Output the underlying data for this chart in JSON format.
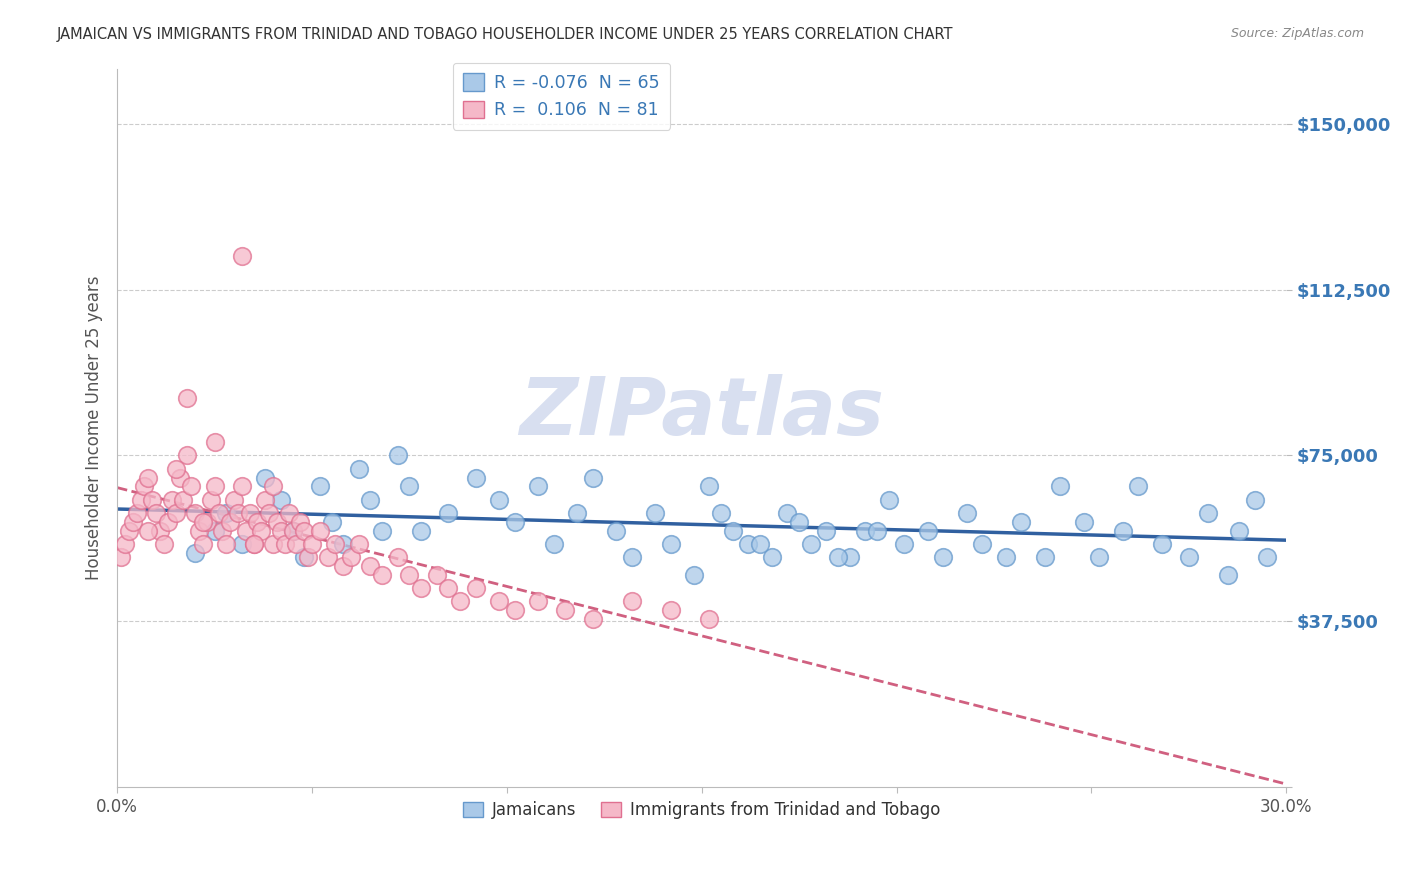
{
  "title": "JAMAICAN VS IMMIGRANTS FROM TRINIDAD AND TOBAGO HOUSEHOLDER INCOME UNDER 25 YEARS CORRELATION CHART",
  "source": "Source: ZipAtlas.com",
  "ylabel": "Householder Income Under 25 years",
  "xlim": [
    0.0,
    0.3
  ],
  "ylim": [
    0,
    162500
  ],
  "yticks": [
    0,
    37500,
    75000,
    112500,
    150000
  ],
  "xticks": [
    0.0,
    0.05,
    0.1,
    0.15,
    0.2,
    0.25,
    0.3
  ],
  "xtick_labels": [
    "0.0%",
    "",
    "",
    "",
    "",
    "",
    "30.0%"
  ],
  "legend_blue_r": "-0.076",
  "legend_blue_n": "65",
  "legend_pink_r": "0.106",
  "legend_pink_n": "81",
  "blue_color": "#aac9e8",
  "pink_color": "#f5b8c8",
  "blue_edge_color": "#6699cc",
  "pink_edge_color": "#e07090",
  "blue_line_color": "#3060a0",
  "pink_line_color": "#d06080",
  "watermark_color": "#d8dff0",
  "background_color": "#ffffff",
  "grid_color": "#cccccc",
  "title_color": "#333333",
  "tick_color": "#555555",
  "ylabel_color": "#555555",
  "ytick_color": "#3a78b5",
  "legend_text_color": "#3a78b5",
  "source_color": "#888888",
  "blue_x": [
    0.02,
    0.025,
    0.028,
    0.032,
    0.038,
    0.042,
    0.045,
    0.048,
    0.052,
    0.055,
    0.058,
    0.062,
    0.065,
    0.068,
    0.072,
    0.075,
    0.078,
    0.085,
    0.092,
    0.098,
    0.102,
    0.108,
    0.112,
    0.118,
    0.122,
    0.128,
    0.132,
    0.138,
    0.142,
    0.148,
    0.152,
    0.158,
    0.162,
    0.168,
    0.172,
    0.178,
    0.182,
    0.188,
    0.192,
    0.198,
    0.202,
    0.208,
    0.212,
    0.218,
    0.222,
    0.228,
    0.232,
    0.238,
    0.242,
    0.248,
    0.252,
    0.258,
    0.262,
    0.268,
    0.275,
    0.28,
    0.285,
    0.288,
    0.292,
    0.295,
    0.155,
    0.165,
    0.175,
    0.185,
    0.195
  ],
  "blue_y": [
    53000,
    58000,
    62000,
    55000,
    70000,
    65000,
    58000,
    52000,
    68000,
    60000,
    55000,
    72000,
    65000,
    58000,
    75000,
    68000,
    58000,
    62000,
    70000,
    65000,
    60000,
    68000,
    55000,
    62000,
    70000,
    58000,
    52000,
    62000,
    55000,
    48000,
    68000,
    58000,
    55000,
    52000,
    62000,
    55000,
    58000,
    52000,
    58000,
    65000,
    55000,
    58000,
    52000,
    62000,
    55000,
    52000,
    60000,
    52000,
    68000,
    60000,
    52000,
    58000,
    68000,
    55000,
    52000,
    62000,
    48000,
    58000,
    65000,
    52000,
    62000,
    55000,
    60000,
    52000,
    58000
  ],
  "pink_x": [
    0.001,
    0.002,
    0.003,
    0.004,
    0.005,
    0.006,
    0.007,
    0.008,
    0.009,
    0.01,
    0.011,
    0.012,
    0.013,
    0.014,
    0.015,
    0.016,
    0.017,
    0.018,
    0.019,
    0.02,
    0.021,
    0.022,
    0.023,
    0.024,
    0.025,
    0.026,
    0.027,
    0.028,
    0.029,
    0.03,
    0.031,
    0.032,
    0.033,
    0.034,
    0.035,
    0.036,
    0.037,
    0.038,
    0.039,
    0.04,
    0.041,
    0.042,
    0.043,
    0.044,
    0.045,
    0.046,
    0.047,
    0.048,
    0.049,
    0.05,
    0.052,
    0.054,
    0.056,
    0.058,
    0.06,
    0.062,
    0.065,
    0.068,
    0.072,
    0.075,
    0.078,
    0.082,
    0.085,
    0.088,
    0.092,
    0.098,
    0.102,
    0.108,
    0.115,
    0.122,
    0.132,
    0.142,
    0.152,
    0.032,
    0.018,
    0.025,
    0.015,
    0.04,
    0.008,
    0.022,
    0.035
  ],
  "pink_y": [
    52000,
    55000,
    58000,
    60000,
    62000,
    65000,
    68000,
    70000,
    65000,
    62000,
    58000,
    55000,
    60000,
    65000,
    62000,
    70000,
    65000,
    75000,
    68000,
    62000,
    58000,
    55000,
    60000,
    65000,
    68000,
    62000,
    58000,
    55000,
    60000,
    65000,
    62000,
    68000,
    58000,
    62000,
    55000,
    60000,
    58000,
    65000,
    62000,
    55000,
    60000,
    58000,
    55000,
    62000,
    58000,
    55000,
    60000,
    58000,
    52000,
    55000,
    58000,
    52000,
    55000,
    50000,
    52000,
    55000,
    50000,
    48000,
    52000,
    48000,
    45000,
    48000,
    45000,
    42000,
    45000,
    42000,
    40000,
    42000,
    40000,
    38000,
    42000,
    40000,
    38000,
    120000,
    88000,
    78000,
    72000,
    68000,
    58000,
    60000,
    55000
  ]
}
